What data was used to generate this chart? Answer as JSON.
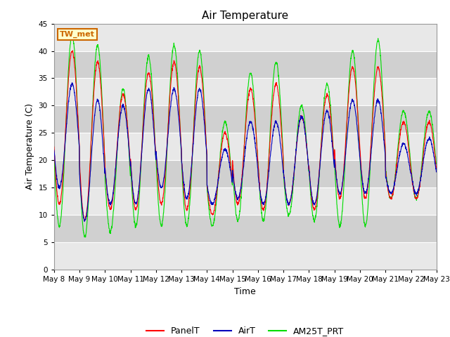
{
  "title": "Air Temperature",
  "xlabel": "Time",
  "ylabel": "Air Temperature (C)",
  "ylim": [
    0,
    45
  ],
  "yticks": [
    0,
    5,
    10,
    15,
    20,
    25,
    30,
    35,
    40,
    45
  ],
  "legend_labels": [
    "PanelT",
    "AirT",
    "AM25T_PRT"
  ],
  "legend_colors": [
    "#ff0000",
    "#0000bb",
    "#00dd00"
  ],
  "station_label": "TW_met",
  "station_box_facecolor": "#ffffcc",
  "station_box_edgecolor": "#cc6600",
  "background_color": "#ffffff",
  "plot_bg_light": "#e8e8e8",
  "plot_bg_dark": "#d0d0d0",
  "grid_color": "#ffffff",
  "title_fontsize": 11,
  "axis_label_fontsize": 9,
  "tick_fontsize": 7.5,
  "total_days": 15,
  "day_start": 8,
  "panel_peaks": [
    40,
    38,
    32,
    36,
    38,
    37,
    25,
    33,
    34,
    28,
    32,
    37,
    37,
    27,
    27
  ],
  "air_peaks": [
    34,
    31,
    30,
    33,
    33,
    33,
    22,
    27,
    27,
    28,
    29,
    31,
    31,
    23,
    24
  ],
  "am25_peaks": [
    43,
    41,
    33,
    39,
    41,
    40,
    27,
    36,
    38,
    30,
    34,
    40,
    42,
    29,
    29
  ],
  "panel_mins": [
    12,
    9,
    11,
    11,
    12,
    11,
    10,
    12,
    11,
    12,
    11,
    13,
    13,
    13,
    13
  ],
  "air_mins": [
    15,
    9,
    12,
    12,
    15,
    13,
    12,
    13,
    12,
    12,
    12,
    14,
    14,
    14,
    14
  ],
  "am25_mins": [
    8,
    6,
    7,
    8,
    8,
    8,
    8,
    9,
    9,
    10,
    9,
    8,
    8,
    13,
    13
  ]
}
